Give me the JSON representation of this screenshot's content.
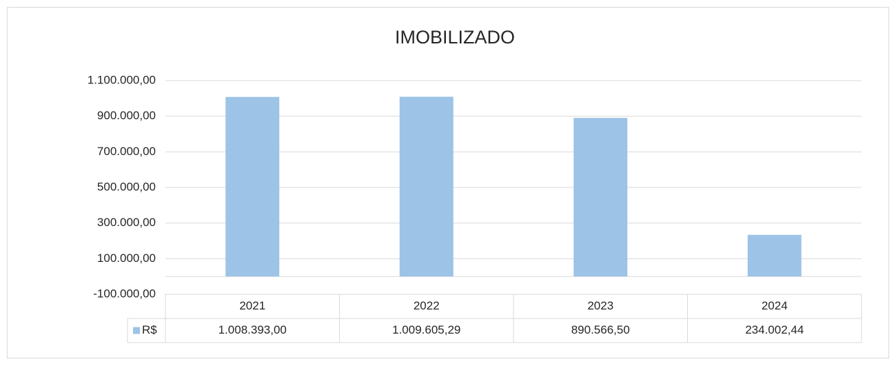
{
  "chart_data": {
    "type": "bar",
    "title": "IMOBILIZADO",
    "categories": [
      "2021",
      "2022",
      "2023",
      "2024"
    ],
    "series": [
      {
        "name": "R$",
        "color": "#9dc3e6",
        "values": [
          1008393.0,
          1009605.29,
          890566.5,
          234002.44
        ],
        "value_labels": [
          "1.008.393,00",
          "1.009.605,29",
          "890.566,50",
          "234.002,44"
        ]
      }
    ],
    "ylim": [
      -100000,
      1100000
    ],
    "yticks": [
      {
        "value": -100000,
        "label": "-100.000,00"
      },
      {
        "value": 100000,
        "label": "100.000,00"
      },
      {
        "value": 300000,
        "label": "300.000,00"
      },
      {
        "value": 500000,
        "label": "500.000,00"
      },
      {
        "value": 700000,
        "label": "700.000,00"
      },
      {
        "value": 900000,
        "label": "900.000,00"
      },
      {
        "value": 1100000,
        "label": "1.100.000,00"
      }
    ],
    "grid": true
  }
}
